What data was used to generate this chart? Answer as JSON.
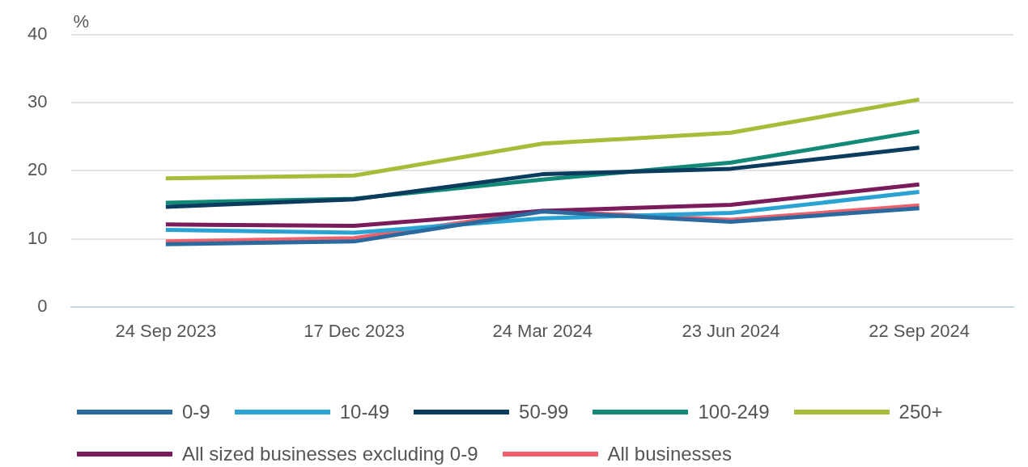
{
  "chart_data": {
    "type": "line",
    "ylabel": "%",
    "categories": [
      "24 Sep 2023",
      "17 Dec 2023",
      "24 Mar 2024",
      "23 Jun 2024",
      "22 Sep 2024"
    ],
    "series": [
      {
        "name": "0-9",
        "color": "#2b6a9e",
        "values": [
          9.2,
          9.6,
          14.0,
          12.5,
          14.5
        ]
      },
      {
        "name": "10-49",
        "color": "#2aa3d4",
        "values": [
          11.3,
          10.9,
          13.0,
          13.8,
          16.9
        ]
      },
      {
        "name": "50-99",
        "color": "#0b3c5d",
        "values": [
          14.7,
          15.8,
          19.5,
          20.3,
          23.4
        ]
      },
      {
        "name": "100-249",
        "color": "#138a78",
        "values": [
          15.3,
          15.9,
          18.7,
          21.2,
          25.8
        ]
      },
      {
        "name": "250+",
        "color": "#a6bd3a",
        "values": [
          18.9,
          19.3,
          24.0,
          25.6,
          30.5
        ]
      },
      {
        "name": "All sized businesses excluding 0-9",
        "color": "#7a1b5b",
        "values": [
          12.1,
          11.9,
          14.1,
          15.0,
          18.0
        ]
      },
      {
        "name": "All businesses",
        "color": "#f0606a",
        "values": [
          9.6,
          10.1,
          14.1,
          12.8,
          14.9
        ]
      }
    ],
    "ylim": [
      0,
      40
    ],
    "yticks": [
      0,
      10,
      20,
      30,
      40
    ],
    "grid": "y",
    "legend": "bottom",
    "marker": "none",
    "line_style": "solid"
  }
}
